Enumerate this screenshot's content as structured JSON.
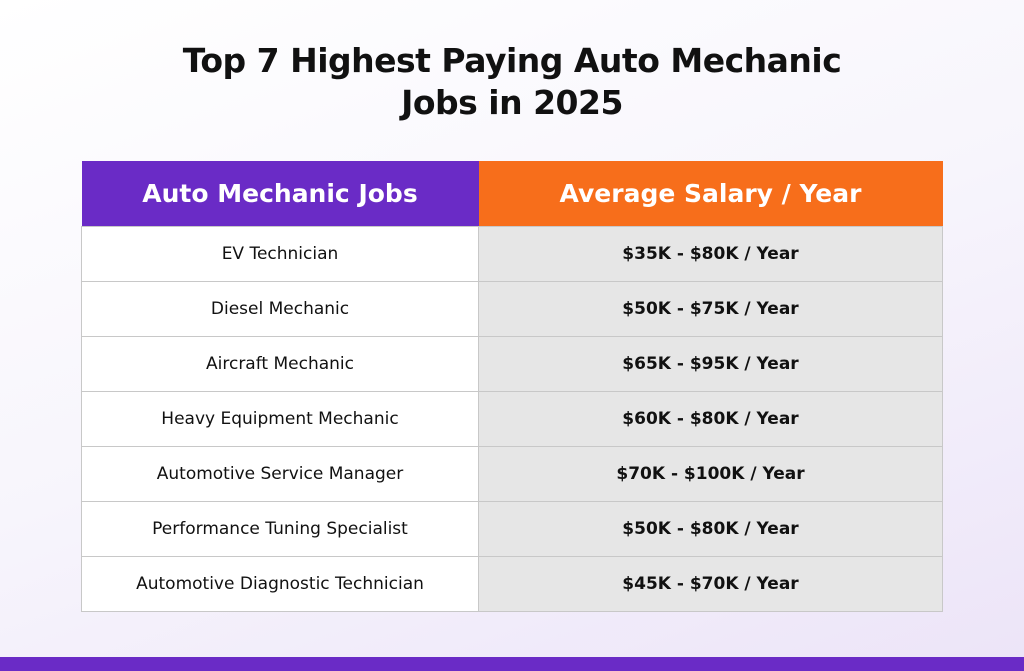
{
  "header": {
    "title": "Top 7 Highest Paying Auto Mechanic Jobs in 2025"
  },
  "table": {
    "columns": [
      "Auto Mechanic Jobs",
      "Average Salary / Year"
    ],
    "rows": [
      [
        "EV Technician",
        "$35K - $80K / Year"
      ],
      [
        "Diesel Mechanic",
        "$50K - $75K / Year"
      ],
      [
        "Aircraft Mechanic",
        "$65K - $95K / Year"
      ],
      [
        "Heavy Equipment Mechanic",
        "$60K - $80K / Year"
      ],
      [
        "Automotive Service Manager",
        "$70K - $100K / Year"
      ],
      [
        "Performance Tuning Specialist",
        "$50K - $80K / Year"
      ],
      [
        "Automotive Diagnostic Technician",
        "$45K - $70K / Year"
      ]
    ]
  }
}
